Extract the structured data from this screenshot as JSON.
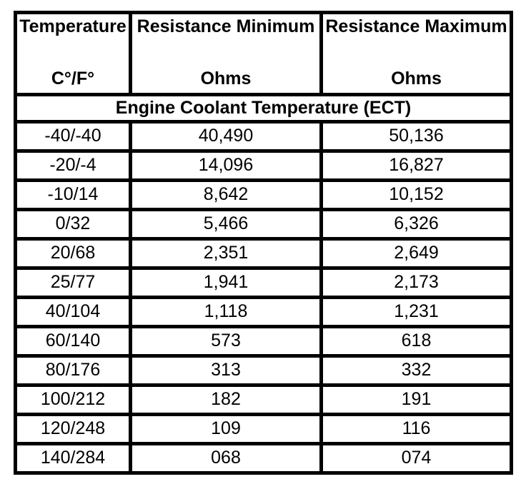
{
  "table": {
    "header": {
      "col1": {
        "title": "Temperature",
        "unit": "C°/F°"
      },
      "col2": {
        "title": "Resistance Minimum",
        "unit": "Ohms"
      },
      "col3": {
        "title": "Resistance Maximum",
        "unit": "Ohms"
      }
    },
    "section": {
      "title": "Engine Coolant Temperature (ECT)"
    },
    "rows": [
      {
        "temp": "-40/-40",
        "min": "40,490",
        "max": "50,136"
      },
      {
        "temp": "-20/-4",
        "min": "14,096",
        "max": "16,827"
      },
      {
        "temp": "-10/14",
        "min": "8,642",
        "max": "10,152"
      },
      {
        "temp": "0/32",
        "min": "5,466",
        "max": "6,326"
      },
      {
        "temp": "20/68",
        "min": "2,351",
        "max": "2,649"
      },
      {
        "temp": "25/77",
        "min": "1,941",
        "max": "2,173"
      },
      {
        "temp": "40/104",
        "min": "1,118",
        "max": "1,231"
      },
      {
        "temp": "60/140",
        "min": "573",
        "max": "618"
      },
      {
        "temp": "80/176",
        "min": "313",
        "max": "332"
      },
      {
        "temp": "100/212",
        "min": "182",
        "max": "191"
      },
      {
        "temp": "120/248",
        "min": "109",
        "max": "116"
      },
      {
        "temp": "140/284",
        "min": "068",
        "max": "074"
      }
    ],
    "colors": {
      "border": "#000000",
      "text": "#000000",
      "background": "#ffffff"
    }
  }
}
